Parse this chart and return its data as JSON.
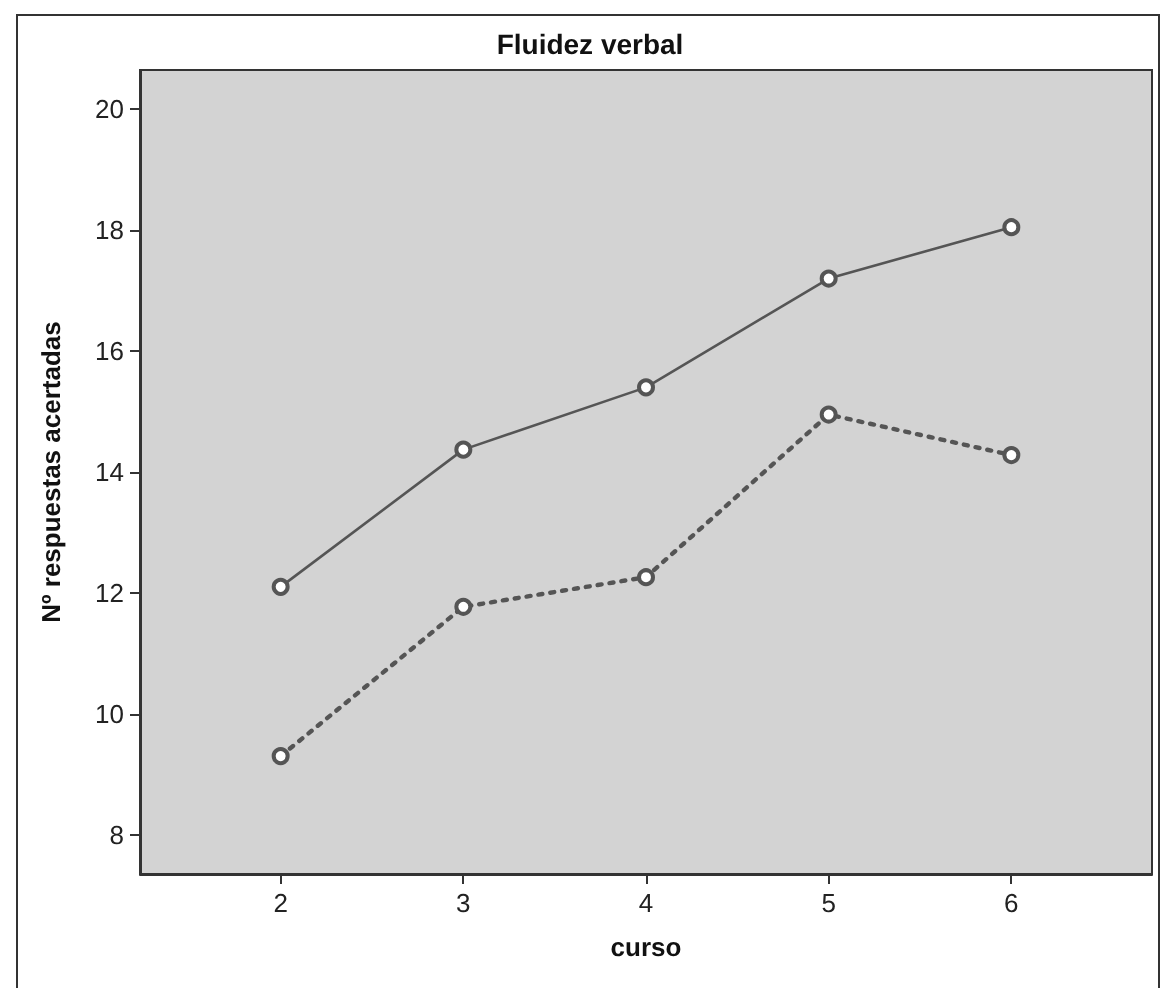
{
  "chart_data": {
    "type": "line",
    "title": "Fluidez verbal",
    "xlabel": "curso",
    "ylabel": "Nº respuestas acertadas",
    "x": [
      2,
      3,
      4,
      5,
      6
    ],
    "xlim": [
      1.23,
      6.77
    ],
    "xticks": [
      2,
      3,
      4,
      5,
      6
    ],
    "ylim": [
      7.35,
      20.65
    ],
    "yticks": [
      8,
      10,
      12,
      14,
      16,
      18,
      20
    ],
    "series": [
      {
        "color": "#555555",
        "line_style": "solid",
        "values": [
          12.1,
          14.37,
          15.4,
          17.2,
          18.05
        ]
      },
      {
        "color": "#555555",
        "line_style": "dotted",
        "values": [
          9.3,
          11.77,
          12.26,
          14.95,
          14.28
        ]
      }
    ],
    "marker": "circle"
  }
}
